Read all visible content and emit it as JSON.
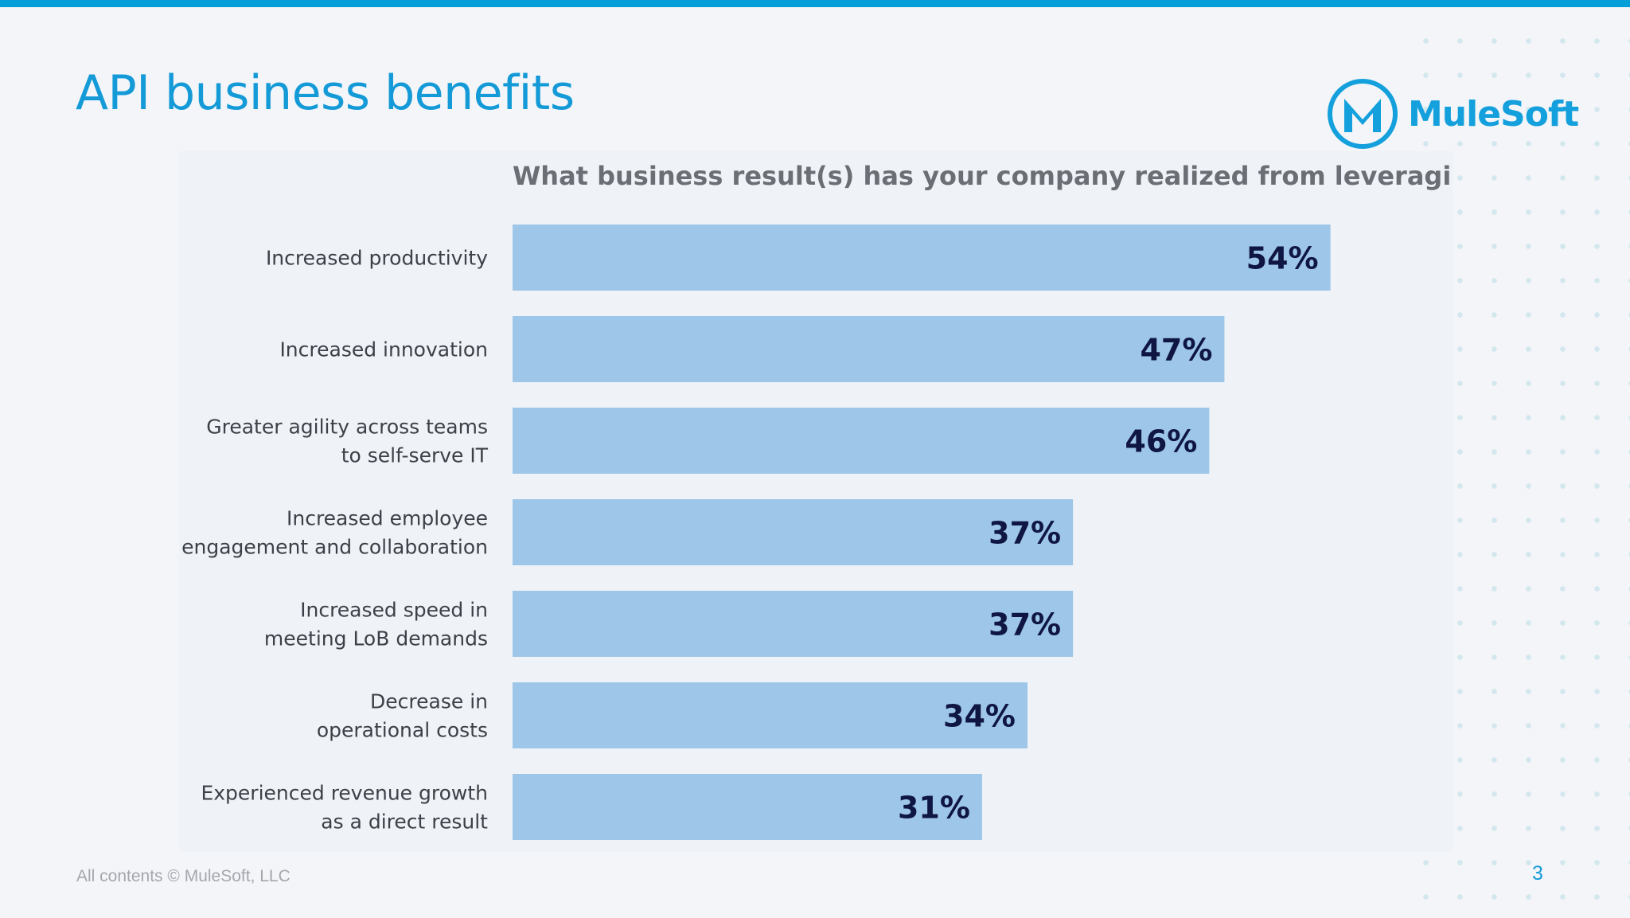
{
  "slide": {
    "title": "API business benefits",
    "footer": "All contents © MuleSoft, LLC",
    "page_number": "3"
  },
  "logo": {
    "text": "MuleSoft",
    "icon": "mulesoft-logo-icon"
  },
  "colors": {
    "accent": "#049fd9",
    "title": "#159ad8",
    "bar": "#9dc6e8",
    "value_label": "#0f1642",
    "category_label": "#3c4048",
    "chart_title": "#6b6f75"
  },
  "chart_data": {
    "type": "bar",
    "orientation": "horizontal",
    "title": "What business result(s) has your company realized from leveraging APIs?",
    "categories": [
      [
        "Increased productivity"
      ],
      [
        "Increased innovation"
      ],
      [
        "Greater agility across teams",
        "to self-serve IT"
      ],
      [
        "Increased employee",
        "engagement and collaboration"
      ],
      [
        "Increased speed in",
        "meeting LoB demands"
      ],
      [
        "Decrease in",
        "operational costs"
      ],
      [
        "Experienced revenue growth",
        "as a direct result"
      ]
    ],
    "values": [
      54,
      47,
      46,
      37,
      37,
      34,
      31
    ],
    "value_labels": [
      "54%",
      "47%",
      "46%",
      "37%",
      "37%",
      "34%",
      "31%"
    ],
    "xlim": [
      0,
      100
    ],
    "grid": false,
    "legend": "none",
    "xlabel": "",
    "ylabel": ""
  }
}
